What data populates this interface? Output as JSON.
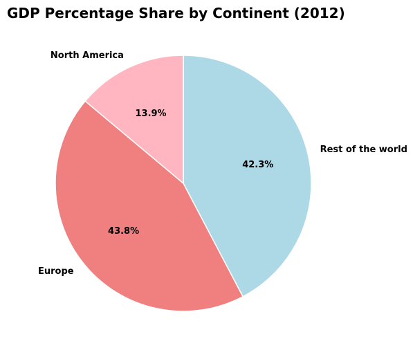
{
  "chart_data": {
    "type": "pie",
    "title": "GDP Percentage Share by Continent (2012)",
    "start_angle_deg": 90,
    "direction": "clockwise",
    "slices": [
      {
        "label": "Rest of the world",
        "value": 42.3,
        "pct_label": "42.3%",
        "color": "#add8e6"
      },
      {
        "label": "Europe",
        "value": 43.8,
        "pct_label": "43.8%",
        "color": "#f08080"
      },
      {
        "label": "North America",
        "value": 13.9,
        "pct_label": "13.9%",
        "color": "#ffb6c1"
      }
    ],
    "edge_color": "#ffffff"
  }
}
